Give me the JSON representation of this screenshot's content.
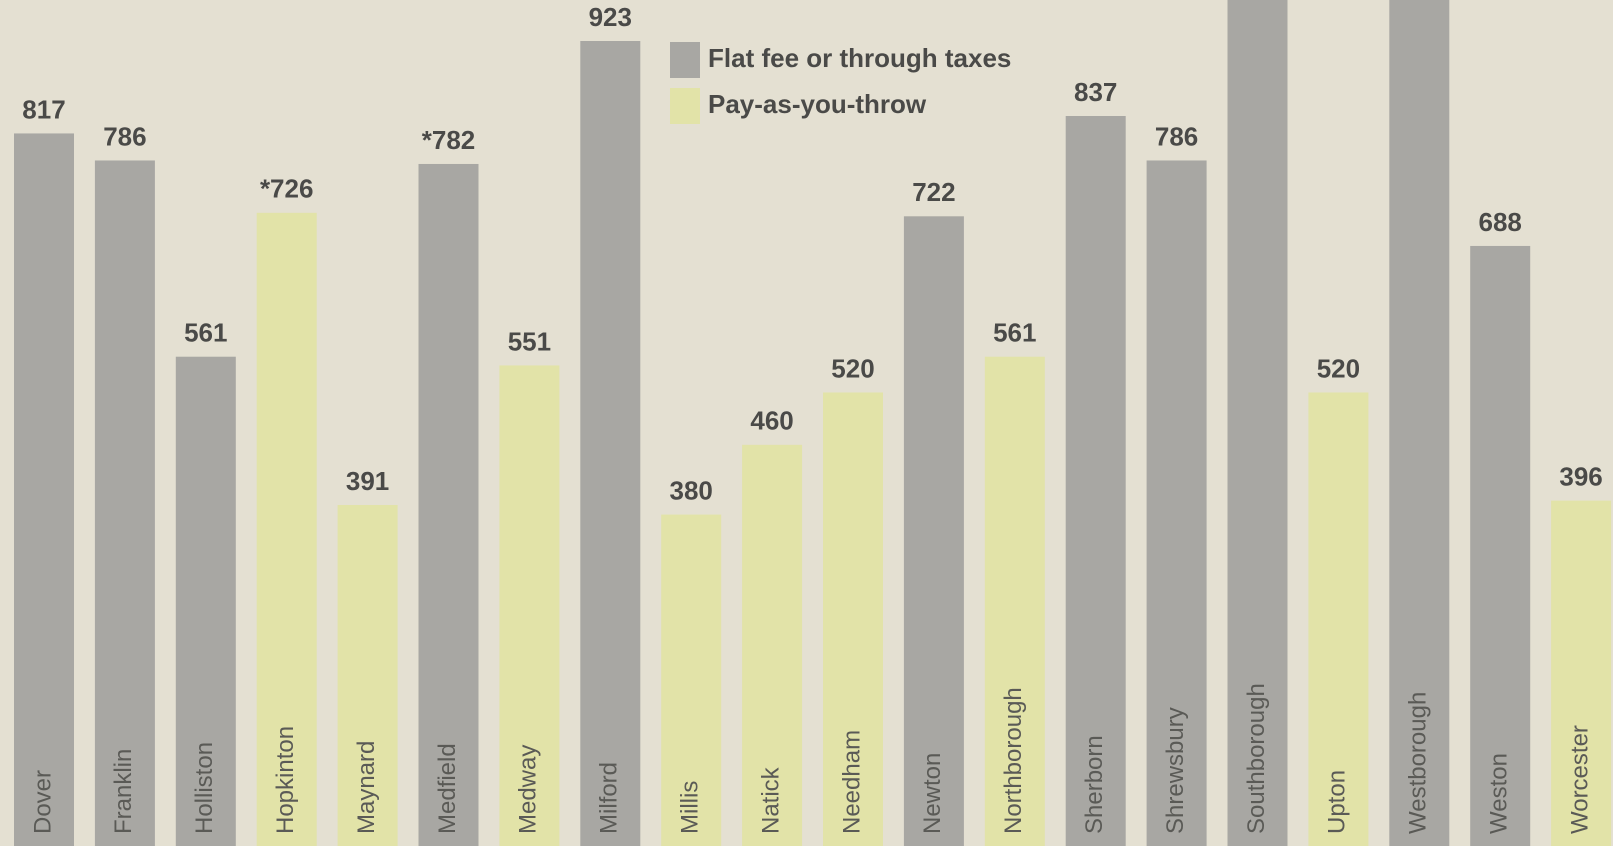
{
  "chart_data": {
    "type": "bar",
    "categories": [
      "Dover",
      "Franklin",
      "Holliston",
      "Hopkinton",
      "Maynard",
      "Medfield",
      "Medway",
      "Milford",
      "Millis",
      "Natick",
      "Needham",
      "Newton",
      "Northborough",
      "Sherborn",
      "Shrewsbury",
      "Southborough",
      "Upton",
      "Westborough",
      "Weston",
      "Worcester"
    ],
    "series": [
      {
        "name": "Flat fee or through taxes",
        "color": "#a8a7a3",
        "values": [
          817,
          786,
          561,
          null,
          null,
          782,
          null,
          923,
          null,
          null,
          null,
          722,
          null,
          837,
          786,
          1000,
          null,
          1000,
          688,
          null
        ],
        "value_labels": [
          null,
          null,
          null,
          null,
          null,
          "*782",
          null,
          null,
          null,
          null,
          null,
          null,
          null,
          null,
          null,
          null,
          null,
          null,
          null,
          null
        ]
      },
      {
        "name": "Pay-as-you-throw",
        "color": "#e2e3a8",
        "values": [
          null,
          null,
          null,
          726,
          391,
          null,
          551,
          null,
          380,
          460,
          520,
          null,
          561,
          null,
          null,
          null,
          520,
          null,
          null,
          396
        ],
        "value_labels": [
          null,
          null,
          null,
          "*726",
          null,
          null,
          null,
          null,
          null,
          null,
          null,
          null,
          null,
          null,
          null,
          null,
          null,
          null,
          null,
          null
        ]
      }
    ],
    "ylim": [
      0,
      970
    ]
  }
}
